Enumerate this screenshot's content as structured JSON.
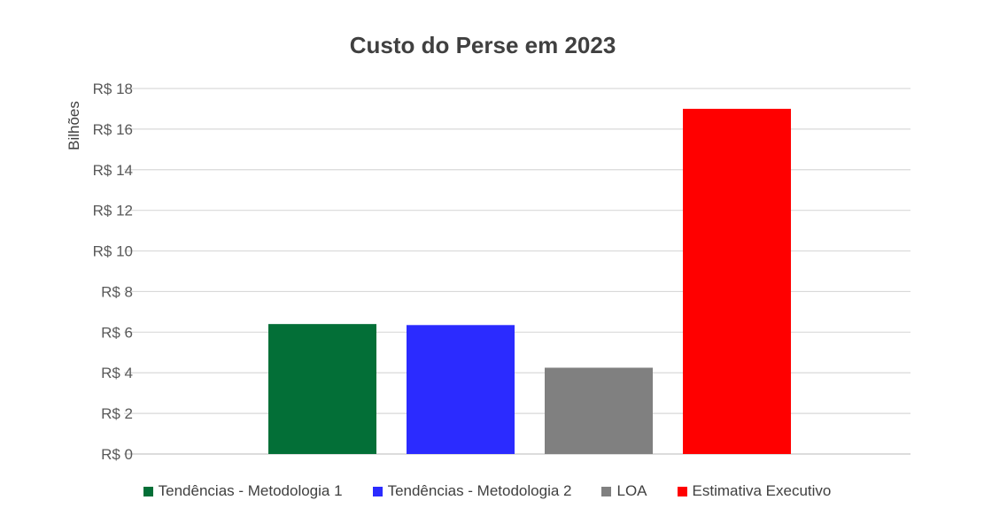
{
  "chart_data": {
    "type": "bar",
    "title": "Custo do Perse em 2023",
    "ylabel": "Bilhões",
    "xlabel": "",
    "ylim": [
      0,
      18
    ],
    "yticks": [
      0,
      2,
      4,
      6,
      8,
      10,
      12,
      14,
      16,
      18
    ],
    "ytick_prefix": "R$ ",
    "grid": true,
    "legend_position": "bottom",
    "series": [
      {
        "name": "Tendências - Metodologia 1",
        "value": 6.4,
        "color": "#036F37"
      },
      {
        "name": "Tendências - Metodologia 2",
        "value": 6.35,
        "color": "#2B2BFF"
      },
      {
        "name": "LOA",
        "value": 4.25,
        "color": "#808080"
      },
      {
        "name": "Estimativa Executivo",
        "value": 17.0,
        "color": "#FF0000"
      }
    ]
  }
}
